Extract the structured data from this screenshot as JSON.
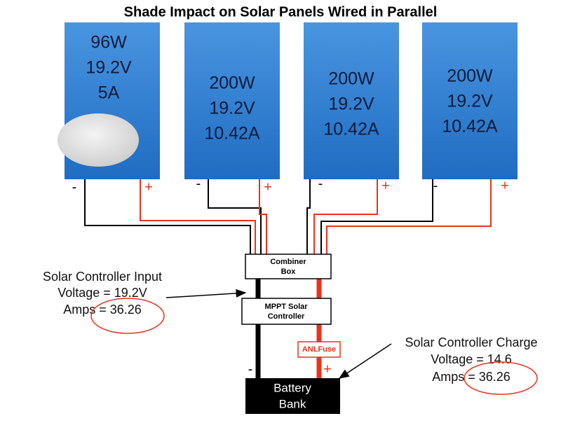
{
  "title": "Shade Impact on Solar Panels Wired in Parallel",
  "panels": [
    {
      "lines": [
        "96W",
        "19.2V",
        "5A"
      ],
      "negative": "-",
      "positive": "+"
    },
    {
      "lines": [
        "200W",
        "19.2V",
        "10.42A"
      ],
      "negative": "-",
      "positive": "+"
    },
    {
      "lines": [
        "200W",
        "19.2V",
        "10.42A"
      ],
      "negative": "-",
      "positive": "+"
    },
    {
      "lines": [
        "200W",
        "19.2V",
        "10.42A"
      ],
      "negative": "-",
      "positive": "+"
    }
  ],
  "combiner_box": {
    "lines": [
      "Combiner",
      "Box"
    ]
  },
  "controller": {
    "lines": [
      "MPPT Solar",
      "Controller"
    ]
  },
  "fuse": {
    "label": "ANLFuse"
  },
  "battery": {
    "lines": [
      "Battery",
      "Bank"
    ],
    "negative": "-",
    "positive": "+"
  },
  "annotations": {
    "input": {
      "lines": [
        "Solar Controller Input",
        "Voltage = 19.2V",
        "Amps = 36.26"
      ]
    },
    "charge": {
      "lines": [
        "Solar Controller Charge",
        "Voltage = 14.6",
        "Amps = 36.26"
      ]
    }
  }
}
